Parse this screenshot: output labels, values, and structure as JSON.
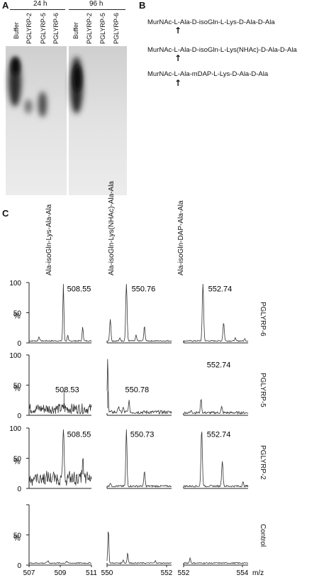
{
  "panels": {
    "a": "A",
    "b": "B",
    "c": "C"
  },
  "gel": {
    "headers": [
      "24 h",
      "96 h"
    ],
    "lanes_24h": [
      "Buffer",
      "PGLYRP-2",
      "PGLYRP-5",
      "PGLYRP-6"
    ],
    "lanes_96h": [
      "Buffer",
      "PGLYRP-2",
      "PGLYRP-5",
      "PGLYRP-6"
    ]
  },
  "scheme": {
    "lines": [
      "MurNAc-L-Ala-D-isoGln-L-Lys-D-Ala-D-Ala",
      "MurNAc-L-Ala-D-isoGln-L-Lys(NHAc)-D-Ala-D-Ala",
      "MurNAc-L-Ala-mDAP-L-Lys-D-Ala-D-Ala"
    ],
    "arrow": "↑"
  },
  "spectra": {
    "column_titles": [
      "Ala-isoGln-Lys-Ala-Ala",
      "Ala-isoGln-Lys(NHAc)-Ala-Ala",
      "Ala-isoGln-DAP-Ala-Ala"
    ],
    "row_labels": [
      "PGLYRP-6",
      "PGLYRP-5",
      "PGLYRP-2",
      "Control"
    ],
    "y_ticks": [
      "100",
      "50",
      "0"
    ],
    "y_unit": "%",
    "x_ticks": [
      [
        "507",
        "509",
        "511"
      ],
      [
        "550",
        "552"
      ],
      [
        "552",
        "554"
      ]
    ],
    "x_unit": "m/z",
    "peak_labels": [
      [
        "508.55",
        "550.76",
        "552.74"
      ],
      [
        "508.53",
        "550.78",
        "552.74"
      ],
      [
        "508.55",
        "550.73",
        "552.74"
      ],
      [
        "",
        "",
        ""
      ]
    ]
  }
}
